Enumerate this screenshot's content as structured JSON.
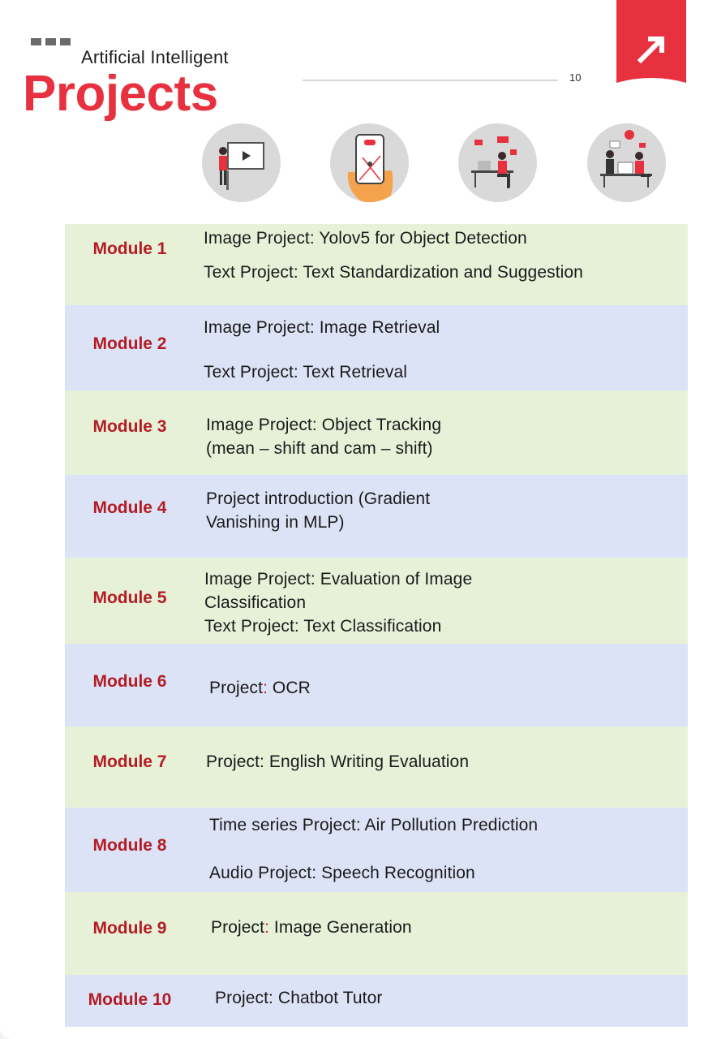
{
  "header": {
    "subtitle": "Artificial Intelligent",
    "title": "Projects",
    "page_number": "10"
  },
  "illustrations": [
    {
      "icon": "presentation-icon"
    },
    {
      "icon": "smartphone-icon"
    },
    {
      "icon": "workstation-icon"
    },
    {
      "icon": "team-collaboration-icon"
    }
  ],
  "modules": [
    {
      "label": "Module 1",
      "lines": [
        "Image Project: Yolov5 for Object Detection",
        "Text Project: Text Standardization and Suggestion"
      ]
    },
    {
      "label": "Module 2",
      "lines": [
        "Image Project: Image Retrieval",
        "Text Project: Text Retrieval"
      ]
    },
    {
      "label": "Module 3",
      "lines": [
        "Image Project: Object Tracking",
        "(mean – shift and cam – shift)"
      ]
    },
    {
      "label": "Module 4",
      "lines": [
        "Project introduction (Gradient",
        "Vanishing in MLP)"
      ]
    },
    {
      "label": "Module 5",
      "lines": [
        "Image Project: Evaluation of Image",
        "Classification",
        "Text Project: Text Classification"
      ]
    },
    {
      "label": "Module 6",
      "lines": [
        "Project",
        ":",
        " OCR"
      ]
    },
    {
      "label": "Module 7",
      "lines": [
        "Project: English Writing Evaluation"
      ]
    },
    {
      "label": "Module 8",
      "lines": [
        "Time series Project: Air Pollution Prediction",
        "Audio Project: Speech Recognition"
      ]
    },
    {
      "label": "Module 9",
      "lines": [
        "Project",
        ":",
        " Image Generation"
      ]
    },
    {
      "label": "Module 10",
      "lines": [
        "Project: Chatbot Tutor"
      ]
    }
  ],
  "colors": {
    "accent_red": "#e8313f",
    "module_label": "#b41c24",
    "row_green": "#e6f1d8",
    "row_blue": "#dde3f6"
  }
}
